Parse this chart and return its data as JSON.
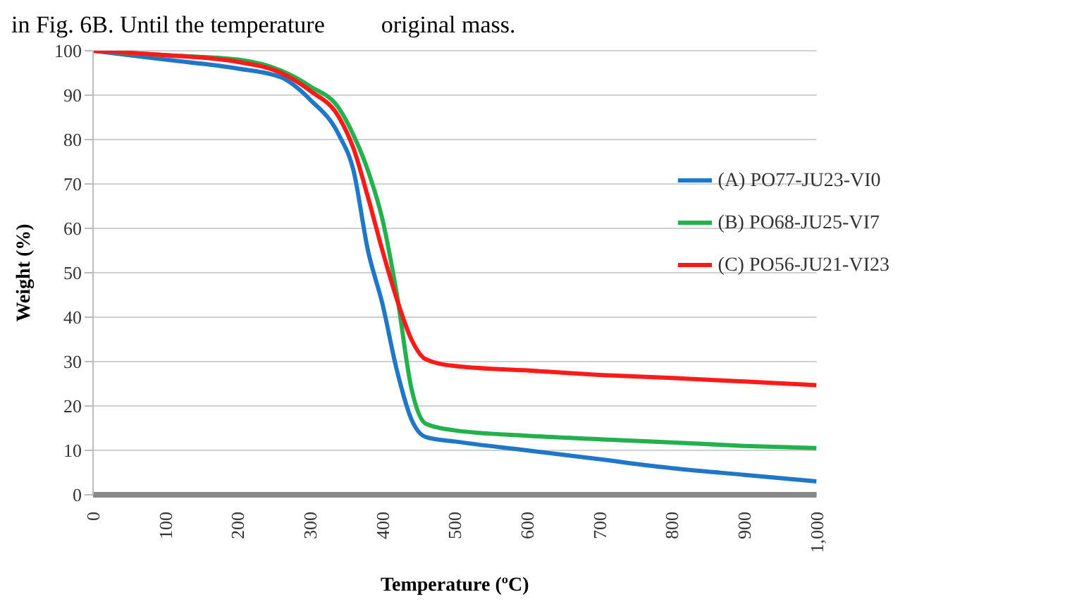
{
  "chart_data": {
    "type": "line",
    "xlabel": "Temperature (ºC)",
    "ylabel": "Weight (%)",
    "annotations": [
      "in Fig. 6B. Until the temperature",
      "original mass."
    ],
    "x": [
      0,
      100,
      200,
      260,
      300,
      340,
      360,
      380,
      400,
      420,
      440,
      460,
      500,
      600,
      700,
      800,
      900,
      1000
    ],
    "series": [
      {
        "name": "(A) PO77-JU23-VI0",
        "color": "#1f77c8",
        "values": [
          100,
          98,
          96,
          94,
          89,
          81,
          73,
          55,
          43,
          28,
          17,
          13,
          12,
          10,
          8,
          6,
          4.5,
          3
        ]
      },
      {
        "name": "(B) PO68-JU25-VI7",
        "color": "#22b14c",
        "values": [
          100,
          99,
          98,
          95.5,
          92,
          87,
          81,
          73,
          62,
          45,
          24,
          16,
          14.5,
          13.3,
          12.5,
          11.8,
          11,
          10.5
        ]
      },
      {
        "name": "(C) PO56-JU21-VI23",
        "color": "#ff1a1a",
        "values": [
          100,
          99,
          97.5,
          95,
          91,
          85,
          78,
          67,
          55,
          44,
          35,
          30.5,
          29,
          28,
          27,
          26.3,
          25.5,
          24.7
        ]
      }
    ],
    "xlim": [
      0,
      1000
    ],
    "xticks": [
      0,
      100,
      200,
      300,
      400,
      500,
      600,
      700,
      800,
      900,
      {
        "value": 1000,
        "label": "1,000"
      }
    ],
    "ylim": [
      0,
      100
    ],
    "yticks": [
      0,
      10,
      20,
      30,
      40,
      50,
      60,
      70,
      80,
      90,
      100
    ],
    "grid": "y",
    "legend": "right",
    "marker": "none",
    "line_style": "solid"
  }
}
